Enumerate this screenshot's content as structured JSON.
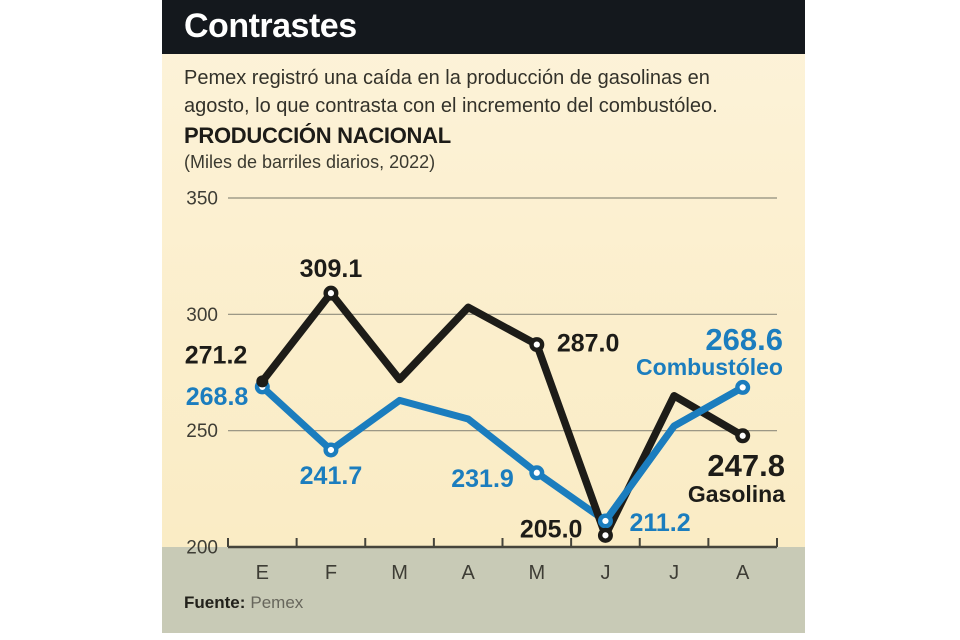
{
  "header": {
    "title": "Contrastes"
  },
  "intro": {
    "line1": "Pemex registró una caída en la producción de gasolinas en",
    "line2": "agosto, lo que contrasta con el incremento del combustóleo."
  },
  "source": {
    "label": "Fuente:",
    "value": "Pemex"
  },
  "colors": {
    "header_bg": "#14181d",
    "card_bg_top": "#fdf3da",
    "card_bg_bottom": "#f9ebc2",
    "bottom_band": "#c8cab6",
    "gridline": "#8e8c7c",
    "axis": "#45443b",
    "tick_label": "#3e3d35",
    "gasolina": "#1d1c18",
    "combustoleo": "#1b7dbe"
  },
  "chart_data": {
    "type": "line",
    "title": "PRODUCCIÓN NACIONAL",
    "subtitle": "(Miles de barriles diarios, 2022)",
    "categories": [
      "E",
      "F",
      "M",
      "A",
      "M",
      "J",
      "J",
      "A"
    ],
    "y_ticks": [
      350,
      300,
      250,
      200
    ],
    "ylim": [
      200,
      350
    ],
    "grid": true,
    "legend_position": "end-of-line-labels",
    "series": [
      {
        "name": "Gasolina",
        "color": "#1d1c18",
        "values": [
          271.2,
          309.1,
          272,
          303,
          287.0,
          205.0,
          265,
          247.8
        ],
        "point_labels": {
          "0": "271.2",
          "1": "309.1",
          "4": "287.0",
          "5": "205.0"
        },
        "end_label": {
          "value": "247.8",
          "name": "Gasolina"
        },
        "markers": {
          "ring": [
            1,
            4,
            5,
            7
          ],
          "dot": [
            0
          ]
        }
      },
      {
        "name": "Combustóleo",
        "color": "#1b7dbe",
        "values": [
          268.8,
          241.7,
          263,
          255,
          231.9,
          211.2,
          252,
          268.6
        ],
        "point_labels": {
          "0": "268.8",
          "1": "241.7",
          "4": "231.9",
          "5": "211.2"
        },
        "end_label": {
          "value": "268.6",
          "name": "Combustóleo"
        },
        "markers": {
          "ring": [
            0,
            1,
            4,
            5,
            7
          ]
        }
      }
    ]
  }
}
